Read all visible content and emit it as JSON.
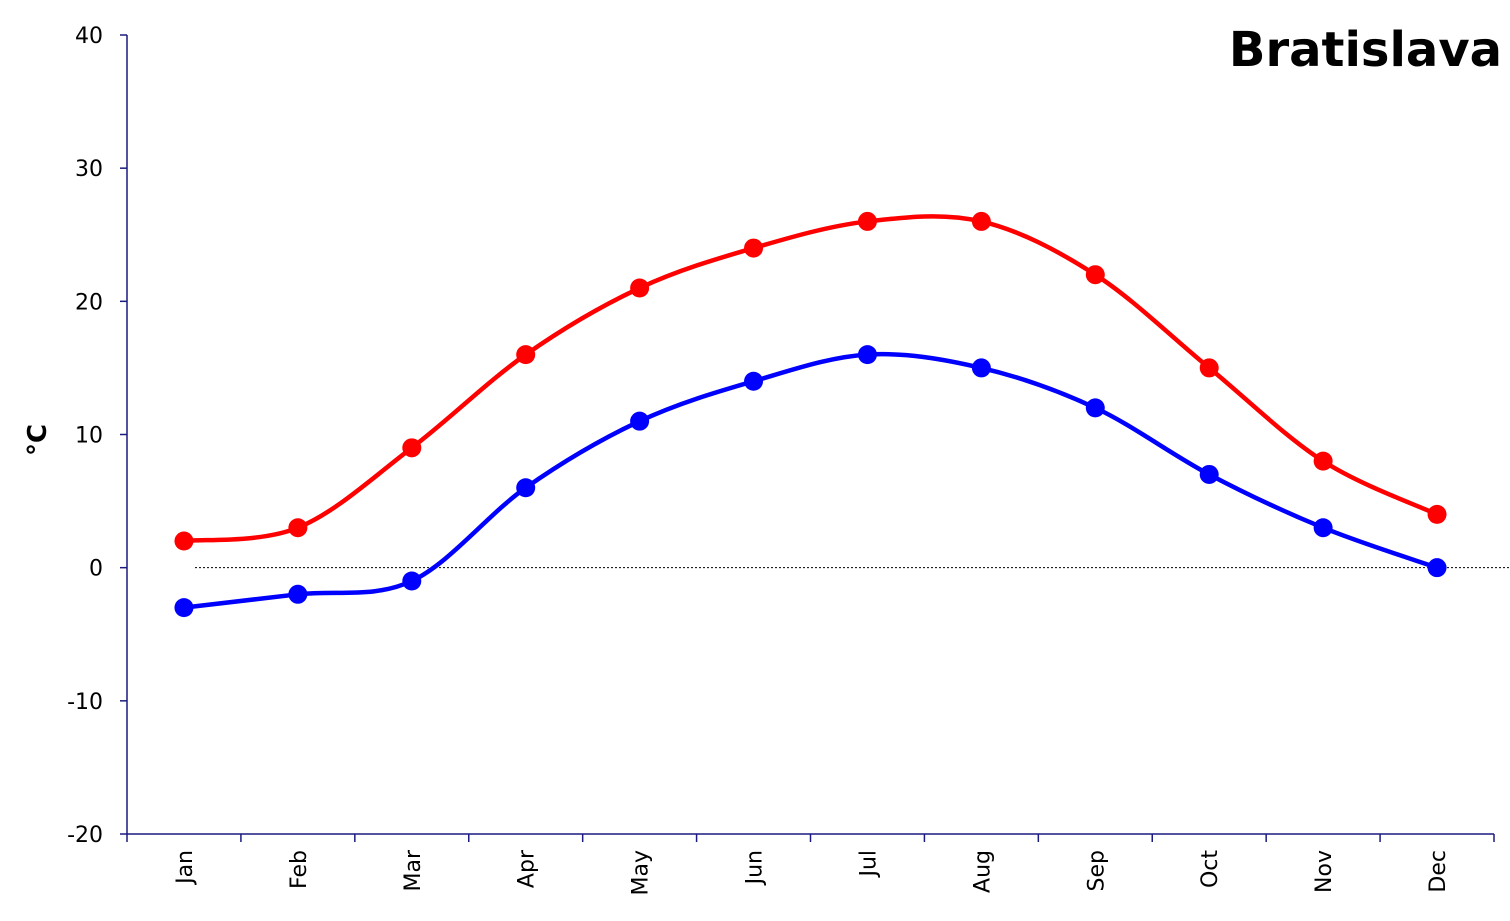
{
  "chart_data": {
    "type": "line",
    "title": "Bratislava",
    "y_label": "°C",
    "categories": [
      "Jan",
      "Feb",
      "Mar",
      "Apr",
      "May",
      "Jun",
      "Jul",
      "Aug",
      "Sep",
      "Oct",
      "Nov",
      "Dec"
    ],
    "series": [
      {
        "color": "#ff0000",
        "values": [
          2,
          3,
          9,
          16,
          21,
          24,
          26,
          26,
          22,
          15,
          8,
          4
        ]
      },
      {
        "color": "#0000ff",
        "values": [
          -3,
          -2,
          -1,
          6,
          11,
          14,
          16,
          15,
          12,
          7,
          3,
          0
        ]
      }
    ],
    "ylim": [
      -20,
      40
    ],
    "yticks": [
      -20,
      -10,
      0,
      10,
      20,
      30,
      40
    ],
    "smooth": true,
    "zero_line": true,
    "grid": false
  }
}
